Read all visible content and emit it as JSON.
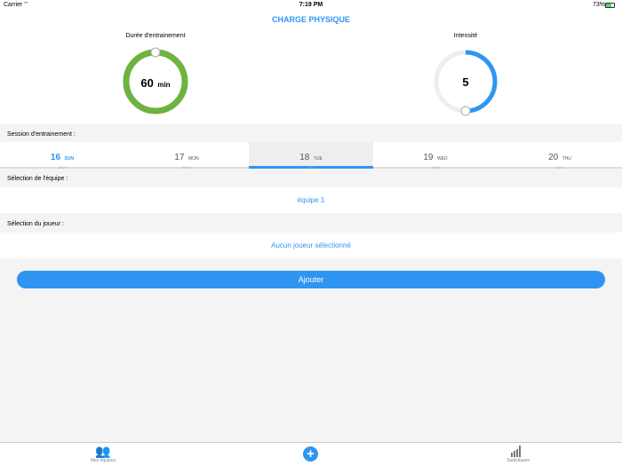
{
  "status": {
    "carrier": "Carrier",
    "time": "7:19 PM",
    "battery": "73%"
  },
  "header": {
    "title": "CHARGE PHYSIQUE"
  },
  "duration": {
    "label": "Durée d'entrainement",
    "value": "60",
    "unit": "min",
    "fraction": 1.0,
    "color": "#6cb33f"
  },
  "intensity": {
    "label": "Intensité",
    "value": "5",
    "fraction": 0.5,
    "color": "#2f95f3"
  },
  "session": {
    "label": "Session d'entrainement :",
    "days": [
      {
        "num": "16",
        "wd": "SUN",
        "month": "JULY"
      },
      {
        "num": "17",
        "wd": "MON",
        "month": "JULY"
      },
      {
        "num": "18",
        "wd": "TUE",
        "month": "JULY"
      },
      {
        "num": "19",
        "wd": "WED",
        "month": "JULY"
      },
      {
        "num": "20",
        "wd": "THU",
        "month": "JULY"
      }
    ],
    "selected_index": 2,
    "today_index": 0
  },
  "team": {
    "label": "Sélection de l'équipe :",
    "value": "équipe 1"
  },
  "player": {
    "label": "Sélection du joueur :",
    "value": "Aucun joueur sélectionné"
  },
  "add_button": "Ajouter",
  "tabs": {
    "teams": "Mes équipes",
    "stats": "Statistiques"
  },
  "accent": "#2f95f3"
}
